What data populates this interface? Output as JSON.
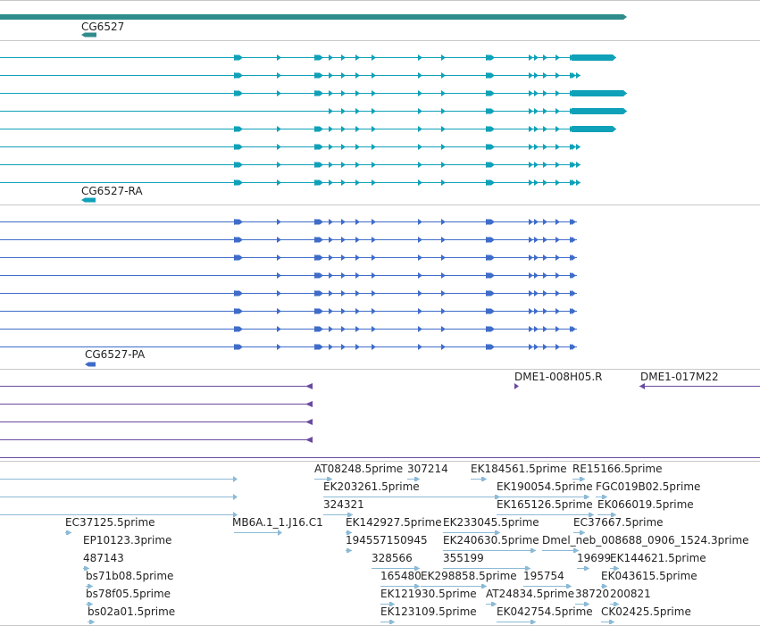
{
  "colors": {
    "gene": "#2f8c8c",
    "transcript_ra": "#0fa1b8",
    "transcript_pa": "#3f6cc9",
    "clone": "#6a4aa0",
    "est": "#8bbad6",
    "separator": "#c8c8c8"
  },
  "tracks": {
    "gene": {
      "label": "CG6527"
    },
    "transcripts_ra": {
      "label": "CG6527-RA"
    },
    "transcripts_pa": {
      "label": "CG6527-PA"
    },
    "clones": {
      "labels": [
        "DME1-008H05.R",
        "DME1-017M22"
      ]
    },
    "ests": {
      "labels": [
        "AT08248.5prime",
        "307214",
        "EK184561.5prime",
        "RE15166.5prime",
        "EK203261.5prime",
        "EK190054.5prime",
        "FGC019B02.5prime",
        "324321",
        "EK165126.5prime",
        "EK066019.5prime",
        "EC37125.5prime",
        "MB6A.1_1.J16.C1",
        "EK142927.5prime",
        "EK233045.5prime",
        "EC37667.5prime",
        "EP10123.3prime",
        "194557150945",
        "EK240630.5prime",
        "Dmel_neb_008688_0906_1524.3prime",
        "487143",
        "328566",
        "355199",
        "19699",
        "EK144621.5prime",
        "bs71b08.5prime",
        "165480",
        "EK298858.5prime",
        "195754",
        "EK043615.5prime",
        "bs78f05.5prime",
        "EK121930.5prime",
        "AT24834.5prime",
        "38720",
        "200821",
        "bs02a01.5prime",
        "EK123109.5prime",
        "EK042754.5prime",
        "CK02425.5prime"
      ]
    }
  }
}
